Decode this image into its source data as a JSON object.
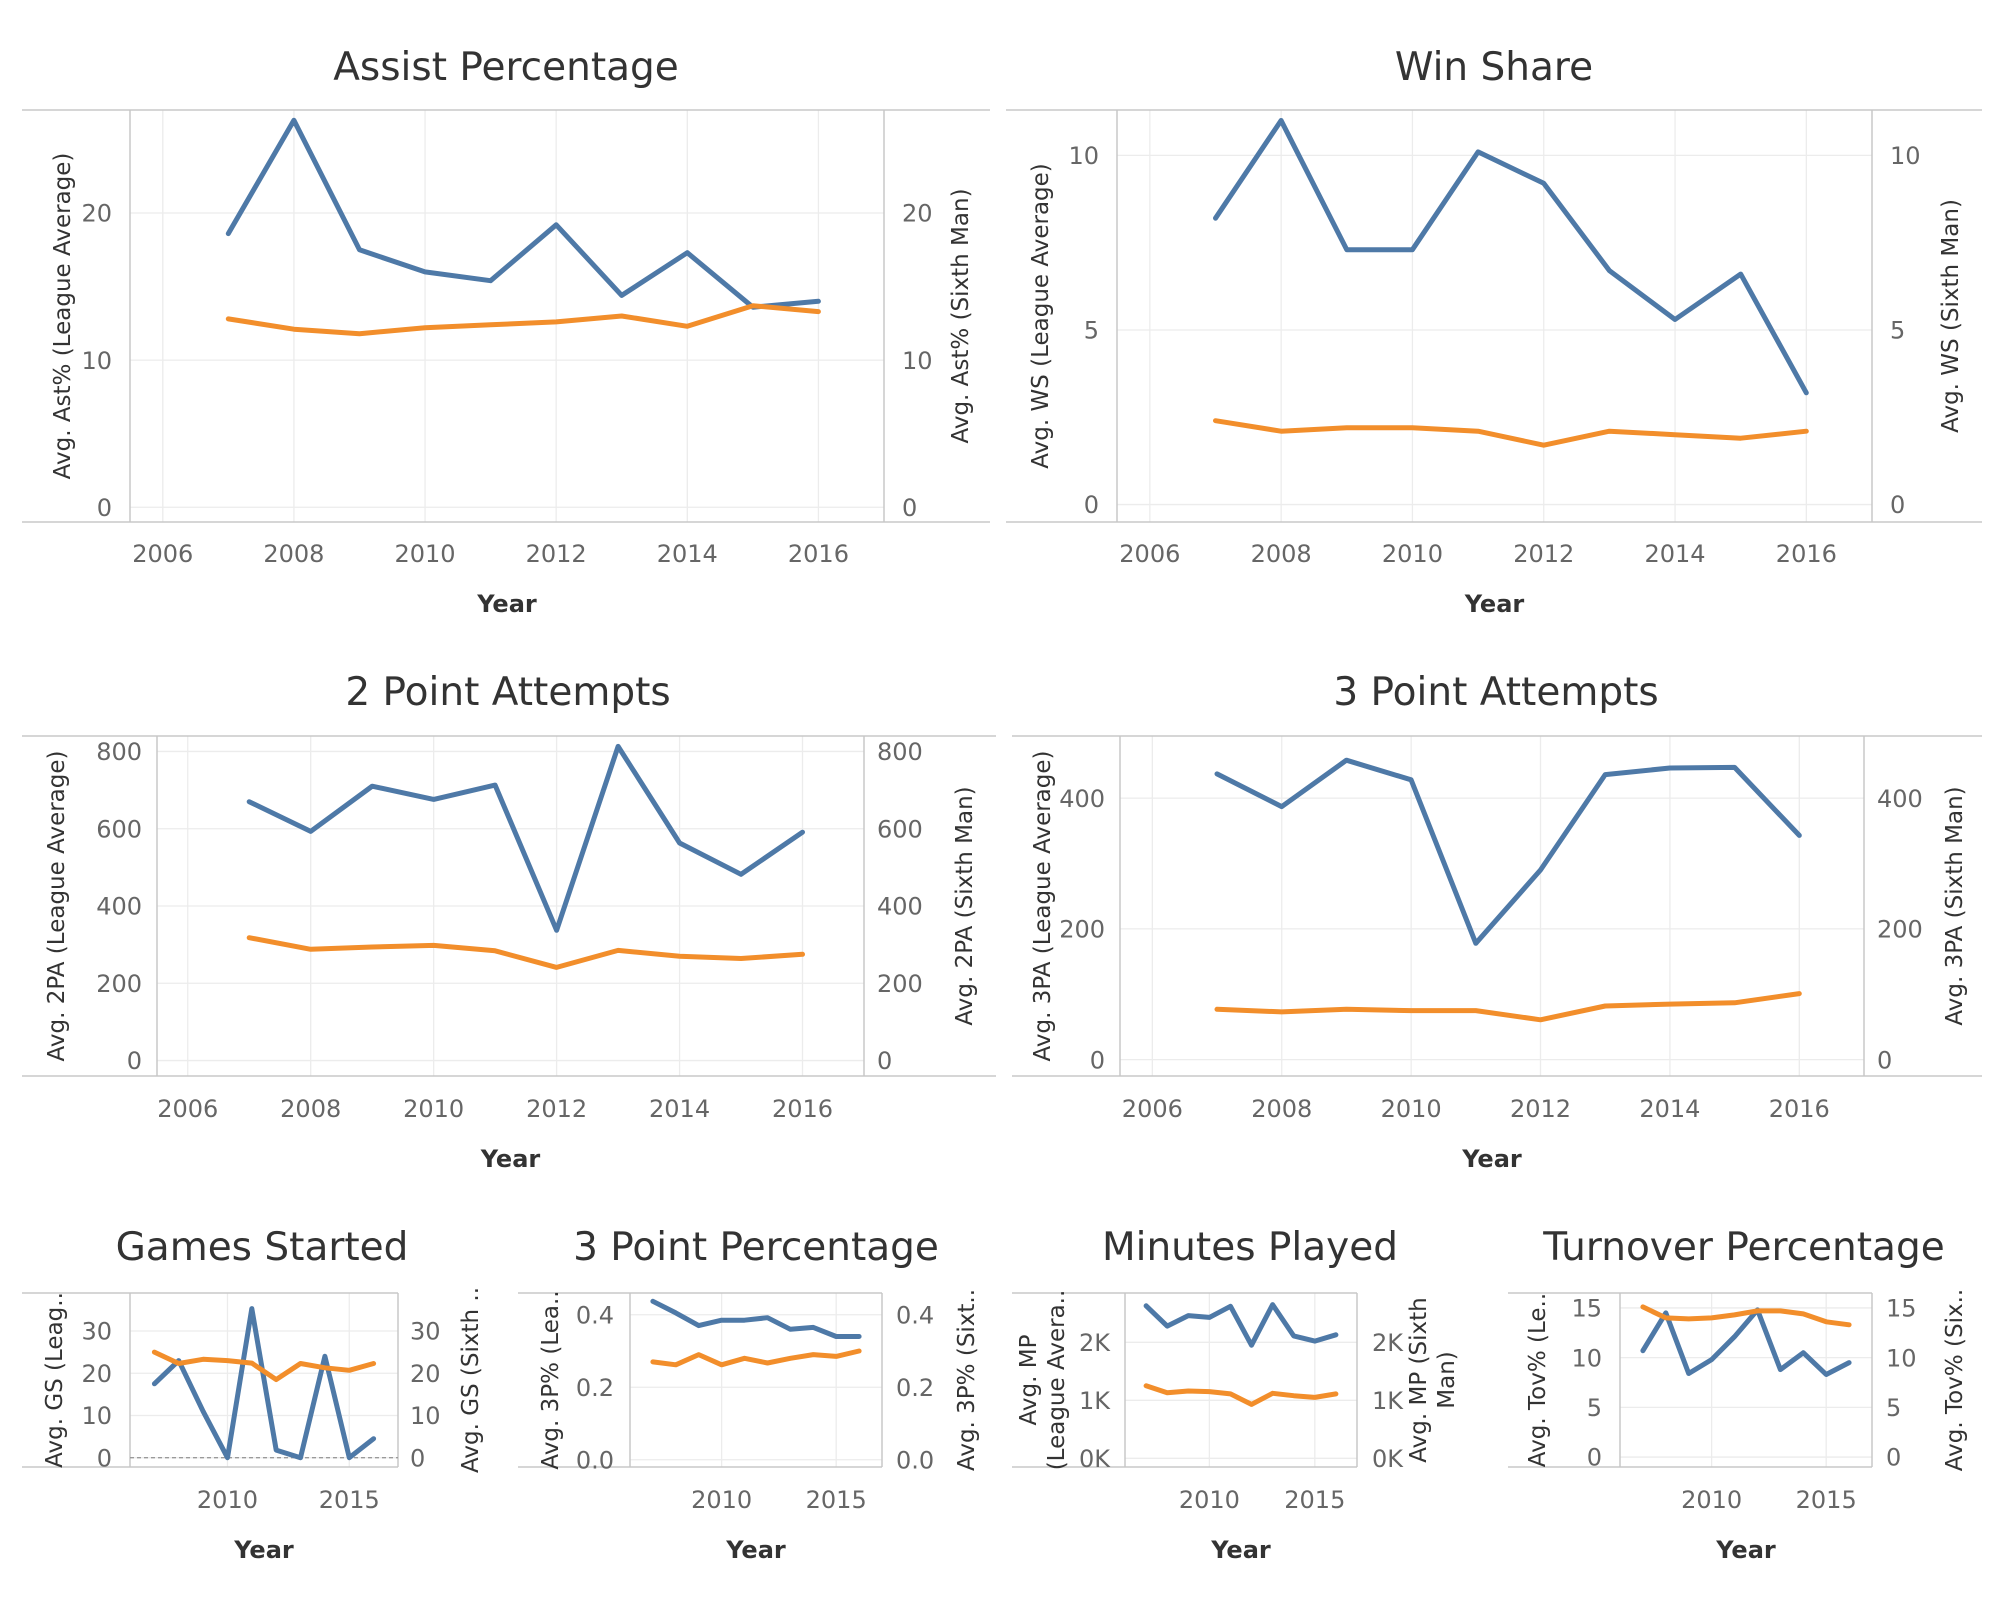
{
  "colors": {
    "sixth_man": "#4e79a7",
    "league_average": "#f28e2b"
  },
  "chart_data": [
    {
      "id": "ast",
      "type": "line",
      "title": "Assist Percentage",
      "xlabel": "Year",
      "ylabel_left": "Avg. Ast% (League Average)",
      "ylabel_right": "Avg. Ast% (Sixth Man)",
      "xlim": [
        2005.5,
        2017
      ],
      "ylim": [
        -1,
        27
      ],
      "xticks": [
        {
          "v": 2006,
          "t": "2006"
        },
        {
          "v": 2008,
          "t": "2008"
        },
        {
          "v": 2010,
          "t": "2010"
        },
        {
          "v": 2012,
          "t": "2012"
        },
        {
          "v": 2014,
          "t": "2014"
        },
        {
          "v": 2016,
          "t": "2016"
        }
      ],
      "yticks": [
        {
          "v": 0,
          "t": "0"
        },
        {
          "v": 10,
          "t": "10"
        },
        {
          "v": 20,
          "t": "20"
        }
      ],
      "x": [
        2007,
        2008,
        2009,
        2010,
        2011,
        2012,
        2013,
        2014,
        2015,
        2016
      ],
      "series": [
        {
          "key": "sixth_man",
          "values": [
            18.6,
            26.3,
            17.5,
            16.0,
            15.4,
            19.2,
            14.4,
            17.3,
            13.6,
            14.0
          ]
        },
        {
          "key": "league_average",
          "values": [
            12.8,
            12.1,
            11.8,
            12.2,
            12.4,
            12.6,
            13.0,
            12.3,
            13.7,
            13.3
          ]
        }
      ]
    },
    {
      "id": "ws",
      "type": "line",
      "title": "Win Share",
      "xlabel": "Year",
      "ylabel_left": "Avg. WS (League Average)",
      "ylabel_right": "Avg. WS (Sixth Man)",
      "xlim": [
        2005.5,
        2017
      ],
      "ylim": [
        -0.5,
        11.3
      ],
      "xticks": [
        {
          "v": 2006,
          "t": "2006"
        },
        {
          "v": 2008,
          "t": "2008"
        },
        {
          "v": 2010,
          "t": "2010"
        },
        {
          "v": 2012,
          "t": "2012"
        },
        {
          "v": 2014,
          "t": "2014"
        },
        {
          "v": 2016,
          "t": "2016"
        }
      ],
      "yticks": [
        {
          "v": 0,
          "t": "0"
        },
        {
          "v": 5,
          "t": "5"
        },
        {
          "v": 10,
          "t": "10"
        }
      ],
      "x": [
        2007,
        2008,
        2009,
        2010,
        2011,
        2012,
        2013,
        2014,
        2015,
        2016
      ],
      "series": [
        {
          "key": "sixth_man",
          "values": [
            8.2,
            11.0,
            7.3,
            7.3,
            10.1,
            9.2,
            6.7,
            5.3,
            6.6,
            3.2
          ]
        },
        {
          "key": "league_average",
          "values": [
            2.4,
            2.1,
            2.2,
            2.2,
            2.1,
            1.7,
            2.1,
            2.0,
            1.9,
            2.1
          ]
        }
      ]
    },
    {
      "id": "2pa",
      "type": "line",
      "title": "2 Point Attempts",
      "xlabel": "Year",
      "ylabel_left": "Avg. 2PA (League Average)",
      "ylabel_right": "Avg. 2PA (Sixth Man)",
      "xlim": [
        2005.5,
        2017
      ],
      "ylim": [
        -40,
        840
      ],
      "xticks": [
        {
          "v": 2006,
          "t": "2006"
        },
        {
          "v": 2008,
          "t": "2008"
        },
        {
          "v": 2010,
          "t": "2010"
        },
        {
          "v": 2012,
          "t": "2012"
        },
        {
          "v": 2014,
          "t": "2014"
        },
        {
          "v": 2016,
          "t": "2016"
        }
      ],
      "yticks": [
        {
          "v": 0,
          "t": "0"
        },
        {
          "v": 200,
          "t": "200"
        },
        {
          "v": 400,
          "t": "400"
        },
        {
          "v": 600,
          "t": "600"
        },
        {
          "v": 800,
          "t": "800"
        }
      ],
      "x": [
        2007,
        2008,
        2009,
        2010,
        2011,
        2012,
        2013,
        2014,
        2015,
        2016
      ],
      "series": [
        {
          "key": "sixth_man",
          "values": [
            670,
            593,
            710,
            676,
            713,
            337,
            813,
            563,
            482,
            591
          ]
        },
        {
          "key": "league_average",
          "values": [
            318,
            288,
            294,
            298,
            284,
            241,
            285,
            270,
            264,
            275
          ]
        }
      ]
    },
    {
      "id": "3pa",
      "type": "line",
      "title": "3 Point Attempts",
      "xlabel": "Year",
      "ylabel_left": "Avg. 3PA (League Average)",
      "ylabel_right": "Avg. 3PA (Sixth Man)",
      "xlim": [
        2005.5,
        2017
      ],
      "ylim": [
        -25,
        495
      ],
      "xticks": [
        {
          "v": 2006,
          "t": "2006"
        },
        {
          "v": 2008,
          "t": "2008"
        },
        {
          "v": 2010,
          "t": "2010"
        },
        {
          "v": 2012,
          "t": "2012"
        },
        {
          "v": 2014,
          "t": "2014"
        },
        {
          "v": 2016,
          "t": "2016"
        }
      ],
      "yticks": [
        {
          "v": 0,
          "t": "0"
        },
        {
          "v": 200,
          "t": "200"
        },
        {
          "v": 400,
          "t": "400"
        }
      ],
      "x": [
        2007,
        2008,
        2009,
        2010,
        2011,
        2012,
        2013,
        2014,
        2015,
        2016
      ],
      "series": [
        {
          "key": "sixth_man",
          "values": [
            437,
            387,
            458,
            428,
            178,
            290,
            436,
            446,
            447,
            343
          ]
        },
        {
          "key": "league_average",
          "values": [
            77,
            73,
            77,
            75,
            75,
            61,
            82,
            85,
            87,
            101
          ]
        }
      ]
    },
    {
      "id": "gs",
      "type": "line",
      "title": "Games Started",
      "xlabel": "Year",
      "ylabel_left": "Avg. GS (Leag..",
      "ylabel_right": "Avg. GS (Sixth ..",
      "xlim": [
        2006,
        2017
      ],
      "ylim": [
        -2.2,
        39
      ],
      "xticks": [
        {
          "v": 2010,
          "t": "2010"
        },
        {
          "v": 2015,
          "t": "2015"
        }
      ],
      "yticks": [
        {
          "v": 0,
          "t": "0"
        },
        {
          "v": 10,
          "t": "10"
        },
        {
          "v": 20,
          "t": "20"
        },
        {
          "v": 30,
          "t": "30"
        }
      ],
      "zero_line": true,
      "x": [
        2007,
        2008,
        2009,
        2010,
        2011,
        2012,
        2013,
        2014,
        2015,
        2016
      ],
      "series": [
        {
          "key": "sixth_man",
          "values": [
            17.5,
            23.0,
            11.0,
            0.0,
            35.3,
            1.8,
            0.0,
            24.0,
            0.0,
            4.5
          ]
        },
        {
          "key": "league_average",
          "values": [
            25.0,
            22.3,
            23.3,
            23.0,
            22.4,
            18.5,
            22.3,
            21.3,
            20.7,
            22.3
          ]
        }
      ]
    },
    {
      "id": "3pp",
      "type": "line",
      "title": "3 Point Percentage",
      "xlabel": "Year",
      "ylabel_left": "Avg. 3P% (Lea..",
      "ylabel_right": "Avg. 3P% (Sixt..",
      "xlim": [
        2006,
        2017
      ],
      "ylim": [
        -0.02,
        0.46
      ],
      "xticks": [
        {
          "v": 2010,
          "t": "2010"
        },
        {
          "v": 2015,
          "t": "2015"
        }
      ],
      "yticks": [
        {
          "v": 0,
          "t": "0.0"
        },
        {
          "v": 0.2,
          "t": "0.2"
        },
        {
          "v": 0.4,
          "t": "0.4"
        }
      ],
      "x": [
        2007,
        2008,
        2009,
        2010,
        2011,
        2012,
        2013,
        2014,
        2015,
        2016
      ],
      "series": [
        {
          "key": "sixth_man",
          "values": [
            0.437,
            0.405,
            0.37,
            0.385,
            0.385,
            0.392,
            0.36,
            0.365,
            0.34,
            0.34
          ]
        },
        {
          "key": "league_average",
          "values": [
            0.27,
            0.262,
            0.29,
            0.262,
            0.28,
            0.267,
            0.28,
            0.29,
            0.285,
            0.3
          ]
        }
      ]
    },
    {
      "id": "mp",
      "type": "line",
      "title": "Minutes Played",
      "xlabel": "Year",
      "ylabel_left_lines": [
        "Avg. MP",
        "(League Avera.."
      ],
      "ylabel_right_lines": [
        "Avg. MP (Sixth",
        "Man)"
      ],
      "xlim": [
        2006,
        2017
      ],
      "ylim": [
        -150,
        2850
      ],
      "xticks": [
        {
          "v": 2010,
          "t": "2010"
        },
        {
          "v": 2015,
          "t": "2015"
        }
      ],
      "yticks": [
        {
          "v": 0,
          "t": "0K"
        },
        {
          "v": 1000,
          "t": "1K"
        },
        {
          "v": 2000,
          "t": "2K"
        }
      ],
      "x": [
        2007,
        2008,
        2009,
        2010,
        2011,
        2012,
        2013,
        2014,
        2015,
        2016
      ],
      "series": [
        {
          "key": "sixth_man",
          "values": [
            2630,
            2280,
            2460,
            2430,
            2620,
            1950,
            2650,
            2110,
            2020,
            2130
          ]
        },
        {
          "key": "league_average",
          "values": [
            1250,
            1130,
            1160,
            1150,
            1110,
            930,
            1120,
            1080,
            1050,
            1110
          ]
        }
      ]
    },
    {
      "id": "tov",
      "type": "line",
      "title": "Turnover Percentage",
      "xlabel": "Year",
      "ylabel_left": "Avg. Tov% (Le..",
      "ylabel_right": "Avg. Tov% (Six..",
      "xlim": [
        2006,
        2017
      ],
      "ylim": [
        -1,
        16.5
      ],
      "xticks": [
        {
          "v": 2010,
          "t": "2010"
        },
        {
          "v": 2015,
          "t": "2015"
        }
      ],
      "yticks": [
        {
          "v": 0,
          "t": "0"
        },
        {
          "v": 5,
          "t": "5"
        },
        {
          "v": 10,
          "t": "10"
        },
        {
          "v": 15,
          "t": "15"
        }
      ],
      "x": [
        2007,
        2008,
        2009,
        2010,
        2011,
        2012,
        2013,
        2014,
        2015,
        2016
      ],
      "series": [
        {
          "key": "sixth_man",
          "values": [
            10.7,
            14.5,
            8.4,
            9.8,
            12.1,
            14.8,
            8.8,
            10.5,
            8.3,
            9.5
          ]
        },
        {
          "key": "league_average",
          "values": [
            15.1,
            14.0,
            13.9,
            14.0,
            14.3,
            14.7,
            14.7,
            14.4,
            13.6,
            13.3
          ]
        }
      ]
    }
  ]
}
